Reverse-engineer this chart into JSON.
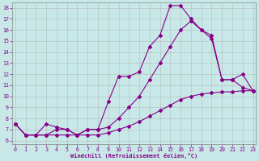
{
  "xlabel": "Windchill (Refroidissement éolien,°C)",
  "background_color": "#c8e8e8",
  "line_color": "#880088",
  "xlim_min": -0.3,
  "xlim_max": 23.3,
  "ylim_min": 5.7,
  "ylim_max": 18.5,
  "xticks": [
    0,
    1,
    2,
    3,
    4,
    5,
    6,
    7,
    8,
    9,
    10,
    11,
    12,
    13,
    14,
    15,
    16,
    17,
    18,
    19,
    20,
    21,
    22,
    23
  ],
  "yticks": [
    6,
    7,
    8,
    9,
    10,
    11,
    12,
    13,
    14,
    15,
    16,
    17,
    18
  ],
  "line1": {
    "x": [
      0,
      1,
      2,
      3,
      4,
      5,
      6,
      7,
      8,
      9,
      10,
      11,
      12,
      13,
      14,
      15,
      16,
      17,
      18,
      19,
      20,
      21,
      22,
      23
    ],
    "y": [
      7.5,
      6.5,
      6.5,
      6.5,
      6.5,
      6.5,
      6.5,
      6.5,
      6.5,
      6.7,
      7.0,
      7.3,
      7.7,
      8.2,
      8.7,
      9.2,
      9.7,
      10.0,
      10.2,
      10.3,
      10.4,
      10.4,
      10.5,
      10.5
    ]
  },
  "line2": {
    "x": [
      0,
      1,
      2,
      3,
      4,
      5,
      6,
      7,
      8,
      9,
      10,
      11,
      12,
      13,
      14,
      15,
      16,
      17,
      18,
      19,
      20,
      21,
      22,
      23
    ],
    "y": [
      7.5,
      6.5,
      6.5,
      7.5,
      7.2,
      7.0,
      6.5,
      7.0,
      7.0,
      9.5,
      11.8,
      11.8,
      12.2,
      14.5,
      15.5,
      18.2,
      18.2,
      17.0,
      16.0,
      15.2,
      11.5,
      11.5,
      12.0,
      10.5
    ]
  },
  "line3": {
    "x": [
      0,
      1,
      2,
      3,
      4,
      5,
      6,
      7,
      8,
      9,
      10,
      11,
      12,
      13,
      14,
      15,
      16,
      17,
      18,
      19,
      20,
      21,
      22,
      23
    ],
    "y": [
      7.5,
      6.5,
      6.5,
      6.5,
      7.0,
      7.0,
      6.5,
      7.0,
      7.0,
      7.2,
      8.0,
      9.0,
      10.0,
      11.5,
      13.0,
      14.5,
      16.0,
      16.8,
      16.0,
      15.5,
      11.5,
      11.5,
      10.8,
      10.5
    ]
  }
}
